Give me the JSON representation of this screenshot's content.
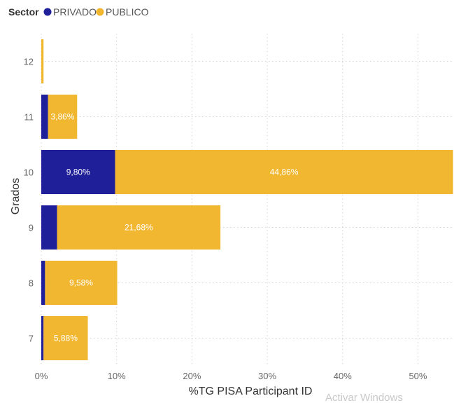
{
  "legend": {
    "title": "Sector",
    "items": [
      {
        "label": "PRIVADO",
        "color": "#1f1f9a"
      },
      {
        "label": "PUBLICO",
        "color": "#f2b731"
      }
    ]
  },
  "watermark": "Activar Windows",
  "chart_data": {
    "type": "bar",
    "orientation": "horizontal",
    "stacked": true,
    "categories": [
      "12",
      "11",
      "10",
      "9",
      "8",
      "7"
    ],
    "series": [
      {
        "name": "PRIVADO",
        "values": [
          0.0,
          0.9,
          9.8,
          2.1,
          0.5,
          0.3
        ],
        "labels": [
          "",
          "",
          "9,80%",
          "",
          "",
          ""
        ]
      },
      {
        "name": "PUBLICO",
        "values": [
          0.3,
          3.86,
          44.86,
          21.68,
          9.58,
          5.88
        ],
        "labels": [
          "",
          "3,86%",
          "44,86%",
          "21,68%",
          "9,58%",
          "5,88%"
        ]
      }
    ],
    "xlim": [
      0,
      54.6
    ],
    "xticks": [
      0,
      10,
      20,
      30,
      40,
      50
    ],
    "xtick_labels": [
      "0%",
      "10%",
      "20%",
      "30%",
      "40%",
      "50%"
    ],
    "xlabel": "%TG PISA Participant ID",
    "ylabel": "Grados",
    "grid": true,
    "legend_position": "top-left"
  }
}
